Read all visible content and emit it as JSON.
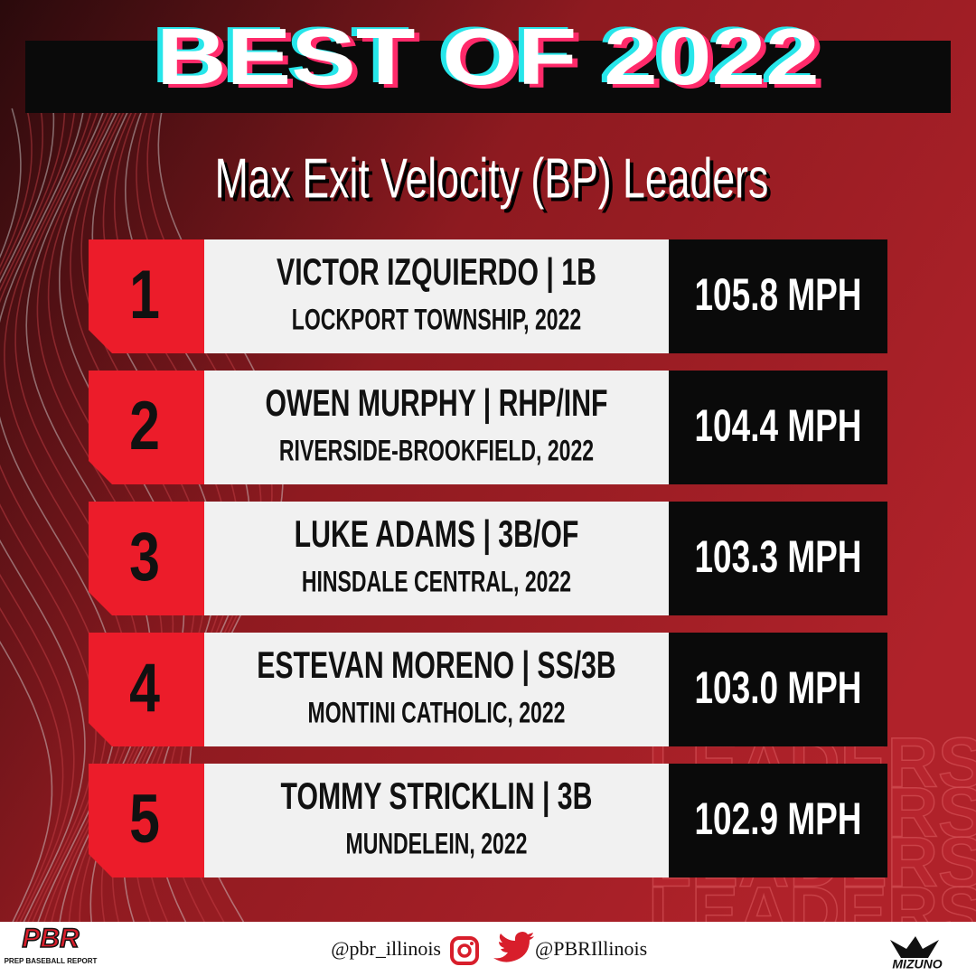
{
  "header": {
    "title": "BEST OF 2022",
    "subtitle": "Max Exit Velocity (BP) Leaders"
  },
  "rows": [
    {
      "rank": "1",
      "name": "VICTOR IZQUIERDO | 1B",
      "school": "LOCKPORT TOWNSHIP, 2022",
      "velocity": "105.8 MPH"
    },
    {
      "rank": "2",
      "name": "OWEN MURPHY | RHP/INF",
      "school": "RIVERSIDE-BROOKFIELD, 2022",
      "velocity": "104.4 MPH"
    },
    {
      "rank": "3",
      "name": "LUKE ADAMS | 3B/OF",
      "school": "HINSDALE CENTRAL, 2022",
      "velocity": "103.3 MPH"
    },
    {
      "rank": "4",
      "name": "ESTEVAN MORENO | SS/3B",
      "school": "MONTINI CATHOLIC, 2022",
      "velocity": "103.0 MPH"
    },
    {
      "rank": "5",
      "name": "TOMMY STRICKLIN | 3B",
      "school": "MUNDELEIN, 2022",
      "velocity": "102.9 MPH"
    }
  ],
  "watermark": "LEADERS",
  "footer": {
    "logo": "PBR",
    "logo_sub": "PREP BASEBALL REPORT",
    "instagram": "@pbr_illinois",
    "twitter": "@PBRIllinois",
    "sponsor": "MIZUNO"
  }
}
